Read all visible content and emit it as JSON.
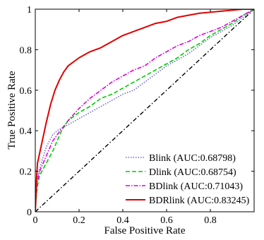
{
  "chart_data": {
    "type": "line",
    "title": "",
    "xlabel": "False Positive Rate",
    "ylabel": "True Positive Rate",
    "xlim": [
      0,
      1
    ],
    "ylim": [
      0,
      1
    ],
    "x_ticks": [
      "0",
      "0.2",
      "0.4",
      "0.6",
      "0.8"
    ],
    "y_ticks": [
      "0",
      "0.2",
      "0.4",
      "0.6",
      "0.8",
      "1"
    ],
    "grid": false,
    "legend_position": "bottom-right",
    "series": [
      {
        "name": "Blink (AUC:0.68798)",
        "color": "#6b6bd6",
        "dash": "1.5,2",
        "x": [
          0,
          0.005,
          0.01,
          0.02,
          0.03,
          0.05,
          0.08,
          0.1,
          0.15,
          0.2,
          0.25,
          0.3,
          0.35,
          0.4,
          0.45,
          0.5,
          0.55,
          0.6,
          0.65,
          0.7,
          0.75,
          0.8,
          0.85,
          0.9,
          0.95,
          1.0
        ],
        "y": [
          0,
          0.12,
          0.17,
          0.21,
          0.25,
          0.32,
          0.38,
          0.4,
          0.43,
          0.46,
          0.49,
          0.52,
          0.55,
          0.58,
          0.6,
          0.64,
          0.68,
          0.72,
          0.75,
          0.78,
          0.82,
          0.86,
          0.89,
          0.92,
          0.96,
          1.0
        ]
      },
      {
        "name": "Dlink (AUC:0.68754)",
        "color": "#00cc00",
        "dash": "6,3",
        "x": [
          0,
          0.005,
          0.01,
          0.02,
          0.04,
          0.06,
          0.08,
          0.1,
          0.12,
          0.15,
          0.2,
          0.25,
          0.3,
          0.35,
          0.4,
          0.45,
          0.5,
          0.55,
          0.6,
          0.65,
          0.7,
          0.75,
          0.8,
          0.85,
          0.9,
          0.95,
          1.0
        ],
        "y": [
          0,
          0.08,
          0.13,
          0.18,
          0.22,
          0.26,
          0.3,
          0.35,
          0.4,
          0.45,
          0.49,
          0.52,
          0.56,
          0.58,
          0.61,
          0.64,
          0.67,
          0.7,
          0.73,
          0.76,
          0.8,
          0.83,
          0.87,
          0.9,
          0.93,
          0.97,
          1.0
        ]
      },
      {
        "name": "BDlink (AUC:0.71043)",
        "color": "#dd00dd",
        "dash": "6,2,1.5,2",
        "x": [
          0,
          0.005,
          0.01,
          0.02,
          0.04,
          0.06,
          0.08,
          0.1,
          0.15,
          0.2,
          0.25,
          0.3,
          0.35,
          0.4,
          0.45,
          0.5,
          0.55,
          0.6,
          0.65,
          0.7,
          0.75,
          0.8,
          0.85,
          0.9,
          0.95,
          1.0
        ],
        "y": [
          0,
          0.1,
          0.15,
          0.2,
          0.25,
          0.3,
          0.35,
          0.38,
          0.45,
          0.51,
          0.56,
          0.6,
          0.64,
          0.67,
          0.7,
          0.72,
          0.76,
          0.79,
          0.82,
          0.84,
          0.87,
          0.89,
          0.91,
          0.94,
          0.97,
          1.0
        ]
      },
      {
        "name": "BDRlink (AUC:0.83245)",
        "color": "#e00000",
        "dash": "",
        "x": [
          0,
          0.005,
          0.01,
          0.02,
          0.03,
          0.05,
          0.07,
          0.09,
          0.11,
          0.13,
          0.15,
          0.2,
          0.25,
          0.3,
          0.35,
          0.4,
          0.45,
          0.5,
          0.55,
          0.6,
          0.65,
          0.7,
          0.75,
          0.8,
          0.85,
          0.9,
          0.95,
          1.0
        ],
        "y": [
          0,
          0.15,
          0.24,
          0.29,
          0.34,
          0.44,
          0.53,
          0.6,
          0.65,
          0.69,
          0.72,
          0.76,
          0.79,
          0.81,
          0.84,
          0.87,
          0.89,
          0.91,
          0.93,
          0.94,
          0.96,
          0.97,
          0.98,
          0.985,
          0.99,
          0.995,
          1.0,
          1.0
        ]
      }
    ],
    "reference_line": {
      "x": [
        0,
        1
      ],
      "y": [
        0,
        1
      ],
      "color": "#000000",
      "dash": "6,3,1.5,3"
    }
  }
}
